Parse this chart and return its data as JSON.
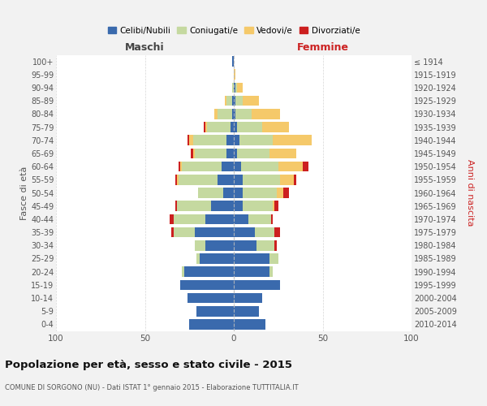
{
  "age_groups": [
    "0-4",
    "5-9",
    "10-14",
    "15-19",
    "20-24",
    "25-29",
    "30-34",
    "35-39",
    "40-44",
    "45-49",
    "50-54",
    "55-59",
    "60-64",
    "65-69",
    "70-74",
    "75-79",
    "80-84",
    "85-89",
    "90-94",
    "95-99",
    "100+"
  ],
  "birth_years": [
    "2010-2014",
    "2005-2009",
    "2000-2004",
    "1995-1999",
    "1990-1994",
    "1985-1989",
    "1980-1984",
    "1975-1979",
    "1970-1974",
    "1965-1969",
    "1960-1964",
    "1955-1959",
    "1950-1954",
    "1945-1949",
    "1940-1944",
    "1935-1939",
    "1930-1934",
    "1925-1929",
    "1920-1924",
    "1915-1919",
    "≤ 1914"
  ],
  "male": {
    "celibi": [
      25,
      21,
      26,
      30,
      28,
      19,
      16,
      22,
      16,
      13,
      6,
      9,
      7,
      4,
      4,
      2,
      1,
      1,
      0,
      0,
      1
    ],
    "coniugati": [
      0,
      0,
      0,
      0,
      1,
      2,
      6,
      12,
      18,
      19,
      14,
      22,
      22,
      18,
      19,
      13,
      8,
      3,
      1,
      0,
      0
    ],
    "vedovi": [
      0,
      0,
      0,
      0,
      0,
      0,
      0,
      0,
      0,
      0,
      0,
      1,
      1,
      1,
      2,
      1,
      2,
      1,
      0,
      0,
      0
    ],
    "divorziati": [
      0,
      0,
      0,
      0,
      0,
      0,
      0,
      1,
      2,
      1,
      0,
      1,
      1,
      1,
      1,
      1,
      0,
      0,
      0,
      0,
      0
    ]
  },
  "female": {
    "nubili": [
      18,
      14,
      16,
      26,
      20,
      20,
      13,
      12,
      8,
      5,
      5,
      5,
      4,
      2,
      3,
      2,
      1,
      1,
      1,
      0,
      0
    ],
    "coniugate": [
      0,
      0,
      0,
      0,
      2,
      5,
      10,
      11,
      13,
      17,
      19,
      21,
      21,
      18,
      19,
      14,
      9,
      4,
      1,
      0,
      0
    ],
    "vedove": [
      0,
      0,
      0,
      0,
      0,
      0,
      0,
      0,
      0,
      1,
      4,
      8,
      14,
      15,
      22,
      15,
      16,
      9,
      3,
      1,
      0
    ],
    "divorziate": [
      0,
      0,
      0,
      0,
      0,
      0,
      1,
      3,
      1,
      2,
      3,
      1,
      3,
      0,
      0,
      0,
      0,
      0,
      0,
      0,
      0
    ]
  },
  "colors": {
    "celibi": "#3a6aad",
    "coniugati": "#c5d9a0",
    "vedovi": "#f5c96a",
    "divorziati": "#cc1f1f"
  },
  "xlim": 100,
  "title": "Popolazione per età, sesso e stato civile - 2015",
  "subtitle": "COMUNE DI SORGONO (NU) - Dati ISTAT 1° gennaio 2015 - Elaborazione TUTTITALIA.IT",
  "ylabel_left": "Fasce di età",
  "ylabel_right": "Anni di nascita",
  "xlabel_left": "Maschi",
  "xlabel_right": "Femmine",
  "bg_color": "#f2f2f2",
  "plot_bg_color": "#ffffff"
}
